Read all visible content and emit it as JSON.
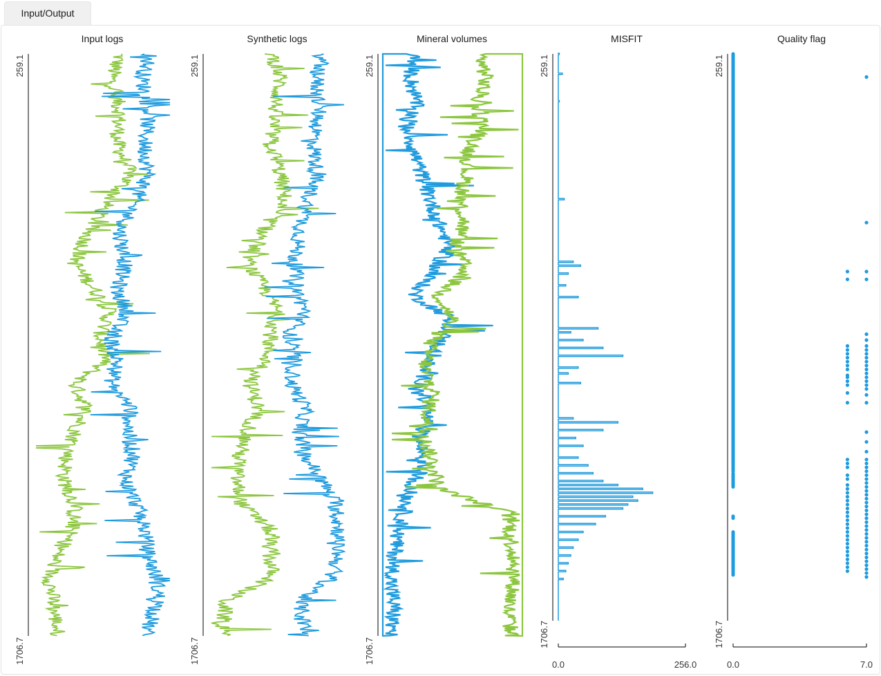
{
  "tab": {
    "label": "Input/Output"
  },
  "colors": {
    "blue": "#1f9bde",
    "green": "#8cc63f",
    "axis": "#000000"
  },
  "depth": {
    "top": "259.1",
    "bottom": "1706.7",
    "top_value": 259.1,
    "bottom_value": 1706.7
  },
  "chart_data": [
    {
      "type": "line",
      "title": "Input logs",
      "ylim": [
        1706.7,
        259.1
      ],
      "series": [
        {
          "color": "#8cc63f",
          "kind": "noisy-curve",
          "depth": [
            259.1,
            320,
            400,
            480,
            560,
            620,
            700,
            780,
            850,
            900,
            960,
            1020,
            1080,
            1140,
            1200,
            1260,
            1320,
            1380,
            1440,
            1500,
            1560,
            1620,
            1706.7
          ],
          "value": [
            0.62,
            0.56,
            0.62,
            0.6,
            0.7,
            0.55,
            0.4,
            0.3,
            0.45,
            0.55,
            0.48,
            0.52,
            0.3,
            0.38,
            0.3,
            0.24,
            0.22,
            0.3,
            0.28,
            0.18,
            0.12,
            0.14,
            0.18
          ]
        },
        {
          "color": "#1f9bde",
          "kind": "noisy-curve",
          "depth": [
            259.1,
            320,
            400,
            480,
            560,
            620,
            700,
            780,
            850,
            900,
            960,
            1020,
            1080,
            1140,
            1200,
            1260,
            1320,
            1380,
            1440,
            1500,
            1560,
            1620,
            1706.7
          ],
          "value": [
            0.84,
            0.78,
            0.83,
            0.8,
            0.82,
            0.74,
            0.62,
            0.66,
            0.6,
            0.68,
            0.55,
            0.6,
            0.56,
            0.7,
            0.68,
            0.72,
            0.66,
            0.74,
            0.8,
            0.82,
            0.88,
            0.9,
            0.8
          ]
        }
      ]
    },
    {
      "type": "line",
      "title": "Synthetic logs",
      "ylim": [
        1706.7,
        259.1
      ],
      "series": [
        {
          "color": "#8cc63f",
          "kind": "noisy-curve",
          "depth": [
            259.1,
            320,
            400,
            480,
            560,
            620,
            700,
            780,
            850,
            900,
            960,
            1020,
            1080,
            1140,
            1200,
            1260,
            1320,
            1380,
            1440,
            1500,
            1560,
            1620,
            1706.7
          ],
          "value": [
            0.46,
            0.52,
            0.48,
            0.45,
            0.52,
            0.55,
            0.4,
            0.28,
            0.42,
            0.5,
            0.45,
            0.42,
            0.3,
            0.36,
            0.28,
            0.22,
            0.2,
            0.24,
            0.44,
            0.44,
            0.46,
            0.12,
            0.1
          ]
        },
        {
          "color": "#1f9bde",
          "kind": "noisy-curve",
          "depth": [
            259.1,
            320,
            400,
            480,
            560,
            620,
            700,
            780,
            850,
            900,
            960,
            1020,
            1080,
            1140,
            1200,
            1260,
            1320,
            1380,
            1440,
            1500,
            1560,
            1620,
            1706.7
          ],
          "value": [
            0.82,
            0.78,
            0.8,
            0.76,
            0.78,
            0.72,
            0.66,
            0.62,
            0.64,
            0.7,
            0.58,
            0.62,
            0.6,
            0.7,
            0.66,
            0.7,
            0.82,
            0.92,
            0.94,
            0.94,
            0.9,
            0.66,
            0.7
          ]
        }
      ]
    },
    {
      "type": "line",
      "title": "Mineral volumes",
      "ylim": [
        1706.7,
        259.1
      ],
      "series": [
        {
          "color": "#1f9bde",
          "kind": "filled-left",
          "depth": [
            259.1,
            320,
            380,
            440,
            500,
            560,
            620,
            680,
            740,
            800,
            860,
            920,
            980,
            1040,
            1100,
            1160,
            1220,
            1280,
            1340,
            1400,
            1460,
            1520,
            1580,
            1640,
            1706.7
          ],
          "value": [
            0.22,
            0.2,
            0.24,
            0.18,
            0.22,
            0.28,
            0.34,
            0.4,
            0.48,
            0.36,
            0.22,
            0.5,
            0.4,
            0.3,
            0.28,
            0.32,
            0.26,
            0.3,
            0.2,
            0.15,
            0.1,
            0.08,
            0.06,
            0.08,
            0.06
          ]
        },
        {
          "color": "#8cc63f",
          "kind": "filled-right",
          "depth": [
            259.1,
            320,
            380,
            440,
            500,
            560,
            620,
            680,
            740,
            800,
            860,
            920,
            980,
            1040,
            1100,
            1160,
            1220,
            1280,
            1340,
            1400,
            1460,
            1520,
            1580,
            1640,
            1706.7
          ],
          "value": [
            0.7,
            0.74,
            0.68,
            0.72,
            0.62,
            0.6,
            0.56,
            0.58,
            0.52,
            0.6,
            0.4,
            0.5,
            0.34,
            0.3,
            0.36,
            0.32,
            0.3,
            0.36,
            0.4,
            0.9,
            0.92,
            0.94,
            0.94,
            0.9,
            0.92
          ]
        }
      ]
    },
    {
      "type": "line",
      "title": "MISFIT",
      "xlim": [
        0.0,
        256.0
      ],
      "xticks": [
        "0.0",
        "256.0"
      ],
      "ylim": [
        1706.7,
        259.1
      ],
      "series": [
        {
          "color": "#1f9bde",
          "kind": "spikes",
          "depth": [
            259.1,
            310,
            380,
            630,
            790,
            800,
            820,
            850,
            880,
            960,
            970,
            990,
            1010,
            1030,
            1060,
            1075,
            1100,
            1190,
            1200,
            1220,
            1240,
            1260,
            1290,
            1310,
            1330,
            1350,
            1360,
            1370,
            1380,
            1390,
            1400,
            1410,
            1420,
            1440,
            1460,
            1480,
            1500,
            1520,
            1540,
            1560,
            1580,
            1600
          ],
          "value": [
            2,
            8,
            2,
            12,
            30,
            45,
            20,
            15,
            40,
            80,
            25,
            50,
            90,
            130,
            40,
            20,
            45,
            30,
            120,
            90,
            35,
            50,
            40,
            60,
            70,
            90,
            120,
            170,
            190,
            150,
            160,
            140,
            130,
            95,
            75,
            50,
            40,
            30,
            25,
            20,
            15,
            10
          ]
        }
      ]
    },
    {
      "type": "scatter",
      "title": "Quality flag",
      "xlim": [
        0.0,
        7.0
      ],
      "xticks": [
        "0.0",
        "7.0"
      ],
      "ylim": [
        1706.7,
        259.1
      ],
      "series": [
        {
          "color": "#1f9bde",
          "x_value": 0,
          "depth_ranges": [
            [
              259.1,
              1325
            ],
            [
              1330,
              1365
            ],
            [
              1440,
              1445
            ],
            [
              1480,
              1590
            ]
          ]
        },
        {
          "color": "#1f9bde",
          "x_value": 6,
          "depths": [
            815,
            835,
            1005,
            1015,
            1025,
            1035,
            1045,
            1055,
            1065,
            1080,
            1085,
            1095,
            1105,
            1125,
            1150,
            1295,
            1305,
            1315,
            1335,
            1345,
            1360,
            1370,
            1380,
            1390,
            1400,
            1410,
            1420,
            1430,
            1440,
            1450,
            1460,
            1470,
            1480,
            1490,
            1500,
            1510,
            1520,
            1530,
            1540,
            1550,
            1560,
            1570,
            1580
          ]
        },
        {
          "color": "#1f9bde",
          "x_value": 7,
          "depths": [
            318,
            690,
            815,
            835,
            975,
            990,
            1005,
            1015,
            1025,
            1035,
            1045,
            1055,
            1065,
            1075,
            1085,
            1095,
            1105,
            1115,
            1130,
            1150,
            1225,
            1250,
            1275,
            1295,
            1305,
            1315,
            1325,
            1335,
            1345,
            1355,
            1365,
            1375,
            1385,
            1395,
            1405,
            1415,
            1425,
            1435,
            1445,
            1455,
            1465,
            1475,
            1485,
            1495,
            1505,
            1515,
            1525,
            1535,
            1545,
            1555,
            1565,
            1575,
            1585,
            1595
          ]
        }
      ]
    }
  ]
}
